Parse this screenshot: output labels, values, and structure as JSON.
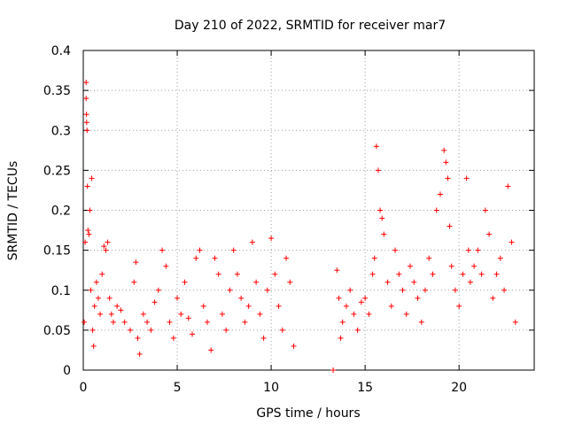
{
  "chart_data": {
    "type": "scatter",
    "title": "Day 210 of 2022, SRMTID for receiver mar7",
    "xlabel": "GPS time / hours",
    "ylabel": "SRMTID / TECUs",
    "xlim": [
      0,
      24
    ],
    "ylim": [
      0,
      0.4
    ],
    "x_ticks": [
      0,
      5,
      10,
      15,
      20
    ],
    "x_tick_labels": [
      "0",
      "5",
      "10",
      "15",
      "20"
    ],
    "y_ticks": [
      0,
      0.05,
      0.1,
      0.15,
      0.2,
      0.25,
      0.3,
      0.35,
      0.4
    ],
    "y_tick_labels": [
      "0",
      "0.05",
      "0.1",
      "0.15",
      "0.2",
      "0.25",
      "0.3",
      "0.35",
      "0.4"
    ],
    "grid": true,
    "marker": "plus",
    "series": [
      {
        "name": "SRMTID",
        "color": "#ff0000",
        "points": [
          [
            0.05,
            0.06
          ],
          [
            0.1,
            0.16
          ],
          [
            0.15,
            0.36
          ],
          [
            0.15,
            0.34
          ],
          [
            0.17,
            0.32
          ],
          [
            0.18,
            0.31
          ],
          [
            0.2,
            0.3
          ],
          [
            0.22,
            0.23
          ],
          [
            0.25,
            0.175
          ],
          [
            0.3,
            0.17
          ],
          [
            0.35,
            0.2
          ],
          [
            0.4,
            0.1
          ],
          [
            0.45,
            0.24
          ],
          [
            0.5,
            0.05
          ],
          [
            0.55,
            0.03
          ],
          [
            0.6,
            0.08
          ],
          [
            0.7,
            0.11
          ],
          [
            0.8,
            0.09
          ],
          [
            0.9,
            0.07
          ],
          [
            1.0,
            0.12
          ],
          [
            1.1,
            0.155
          ],
          [
            1.2,
            0.15
          ],
          [
            1.3,
            0.16
          ],
          [
            1.4,
            0.09
          ],
          [
            1.5,
            0.07
          ],
          [
            1.6,
            0.06
          ],
          [
            1.8,
            0.08
          ],
          [
            2.0,
            0.075
          ],
          [
            2.2,
            0.06
          ],
          [
            2.5,
            0.05
          ],
          [
            2.7,
            0.11
          ],
          [
            2.8,
            0.135
          ],
          [
            2.9,
            0.04
          ],
          [
            3.0,
            0.02
          ],
          [
            3.2,
            0.07
          ],
          [
            3.4,
            0.06
          ],
          [
            3.6,
            0.05
          ],
          [
            3.8,
            0.085
          ],
          [
            4.0,
            0.1
          ],
          [
            4.2,
            0.15
          ],
          [
            4.4,
            0.13
          ],
          [
            4.6,
            0.06
          ],
          [
            4.8,
            0.04
          ],
          [
            5.0,
            0.09
          ],
          [
            5.2,
            0.07
          ],
          [
            5.4,
            0.11
          ],
          [
            5.6,
            0.065
          ],
          [
            5.8,
            0.045
          ],
          [
            6.0,
            0.14
          ],
          [
            6.2,
            0.15
          ],
          [
            6.4,
            0.08
          ],
          [
            6.6,
            0.06
          ],
          [
            6.8,
            0.025
          ],
          [
            7.0,
            0.14
          ],
          [
            7.2,
            0.12
          ],
          [
            7.4,
            0.07
          ],
          [
            7.6,
            0.05
          ],
          [
            7.8,
            0.1
          ],
          [
            8.0,
            0.15
          ],
          [
            8.2,
            0.12
          ],
          [
            8.4,
            0.09
          ],
          [
            8.6,
            0.06
          ],
          [
            8.8,
            0.08
          ],
          [
            9.0,
            0.16
          ],
          [
            9.2,
            0.11
          ],
          [
            9.4,
            0.07
          ],
          [
            9.6,
            0.04
          ],
          [
            9.8,
            0.1
          ],
          [
            10.0,
            0.165
          ],
          [
            10.2,
            0.12
          ],
          [
            10.4,
            0.08
          ],
          [
            10.6,
            0.05
          ],
          [
            10.8,
            0.14
          ],
          [
            11.0,
            0.11
          ],
          [
            11.2,
            0.03
          ],
          [
            13.3,
            0.0
          ],
          [
            13.5,
            0.125
          ],
          [
            13.6,
            0.09
          ],
          [
            13.7,
            0.04
          ],
          [
            13.8,
            0.06
          ],
          [
            14.0,
            0.08
          ],
          [
            14.2,
            0.1
          ],
          [
            14.4,
            0.07
          ],
          [
            14.6,
            0.05
          ],
          [
            14.8,
            0.085
          ],
          [
            15.0,
            0.09
          ],
          [
            15.2,
            0.07
          ],
          [
            15.4,
            0.12
          ],
          [
            15.5,
            0.14
          ],
          [
            15.6,
            0.28
          ],
          [
            15.7,
            0.25
          ],
          [
            15.8,
            0.2
          ],
          [
            15.9,
            0.19
          ],
          [
            16.0,
            0.17
          ],
          [
            16.2,
            0.11
          ],
          [
            16.4,
            0.08
          ],
          [
            16.6,
            0.15
          ],
          [
            16.8,
            0.12
          ],
          [
            17.0,
            0.1
          ],
          [
            17.2,
            0.07
          ],
          [
            17.4,
            0.13
          ],
          [
            17.6,
            0.11
          ],
          [
            17.8,
            0.09
          ],
          [
            18.0,
            0.06
          ],
          [
            18.2,
            0.1
          ],
          [
            18.4,
            0.14
          ],
          [
            18.6,
            0.12
          ],
          [
            18.8,
            0.2
          ],
          [
            19.0,
            0.22
          ],
          [
            19.2,
            0.275
          ],
          [
            19.3,
            0.26
          ],
          [
            19.4,
            0.24
          ],
          [
            19.5,
            0.18
          ],
          [
            19.6,
            0.13
          ],
          [
            19.8,
            0.1
          ],
          [
            20.0,
            0.08
          ],
          [
            20.2,
            0.12
          ],
          [
            20.4,
            0.24
          ],
          [
            20.5,
            0.15
          ],
          [
            20.6,
            0.11
          ],
          [
            20.8,
            0.13
          ],
          [
            21.0,
            0.15
          ],
          [
            21.2,
            0.12
          ],
          [
            21.4,
            0.2
          ],
          [
            21.6,
            0.17
          ],
          [
            21.8,
            0.09
          ],
          [
            22.0,
            0.12
          ],
          [
            22.2,
            0.14
          ],
          [
            22.4,
            0.1
          ],
          [
            22.6,
            0.23
          ],
          [
            22.8,
            0.16
          ],
          [
            23.0,
            0.06
          ]
        ]
      }
    ]
  }
}
